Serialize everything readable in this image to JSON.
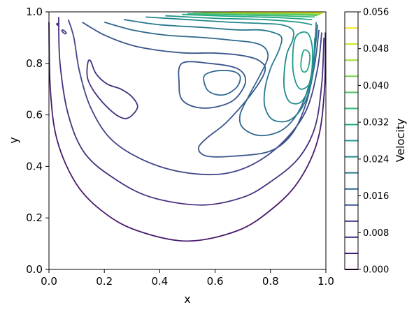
{
  "chart_data": {
    "type": "contour",
    "title": "",
    "xlabel": "x",
    "ylabel": "y",
    "xlim": [
      0.0,
      1.0
    ],
    "ylim": [
      0.0,
      1.0
    ],
    "xticks": [
      "0.0",
      "0.2",
      "0.4",
      "0.6",
      "0.8",
      "1.0"
    ],
    "yticks": [
      "0.0",
      "0.2",
      "0.4",
      "0.6",
      "0.8",
      "1.0"
    ],
    "grid": false,
    "colormap": "viridis",
    "colorbar": {
      "label": "Velocity",
      "range": [
        0.0,
        0.056
      ],
      "ticks": [
        "0.000",
        "0.008",
        "0.016",
        "0.024",
        "0.032",
        "0.040",
        "0.048",
        "0.056"
      ]
    },
    "levels": [
      {
        "value": 0.0,
        "color": "#440154"
      },
      {
        "value": 0.0035,
        "color": "#481a6c"
      },
      {
        "value": 0.007,
        "color": "#472f7d"
      },
      {
        "value": 0.0105,
        "color": "#414487"
      },
      {
        "value": 0.014,
        "color": "#39568c"
      },
      {
        "value": 0.0175,
        "color": "#31688e"
      },
      {
        "value": 0.021,
        "color": "#2a788e"
      },
      {
        "value": 0.0245,
        "color": "#23888e"
      },
      {
        "value": 0.028,
        "color": "#1f988b"
      },
      {
        "value": 0.0315,
        "color": "#22a884"
      },
      {
        "value": 0.035,
        "color": "#35b779"
      },
      {
        "value": 0.0385,
        "color": "#54c568"
      },
      {
        "value": 0.042,
        "color": "#7ad151"
      },
      {
        "value": 0.0455,
        "color": "#a5db36"
      },
      {
        "value": 0.049,
        "color": "#d2e21b"
      },
      {
        "value": 0.0525,
        "color": "#fde725"
      }
    ],
    "contours": [
      {
        "level": 0.0035,
        "points": [
          [
            0.0,
            0.96
          ],
          [
            0.005,
            0.7
          ],
          [
            0.03,
            0.5
          ],
          [
            0.1,
            0.33
          ],
          [
            0.2,
            0.22
          ],
          [
            0.32,
            0.15
          ],
          [
            0.5,
            0.11
          ],
          [
            0.68,
            0.15
          ],
          [
            0.8,
            0.23
          ],
          [
            0.9,
            0.34
          ],
          [
            0.97,
            0.5
          ],
          [
            0.995,
            0.7
          ],
          [
            0.998,
            0.92
          ]
        ]
      },
      {
        "level": 0.007,
        "points": [
          [
            0.035,
            0.98
          ],
          [
            0.04,
            0.8
          ],
          [
            0.07,
            0.6
          ],
          [
            0.13,
            0.45
          ],
          [
            0.24,
            0.35
          ],
          [
            0.37,
            0.28
          ],
          [
            0.55,
            0.25
          ],
          [
            0.7,
            0.28
          ],
          [
            0.8,
            0.34
          ],
          [
            0.9,
            0.43
          ],
          [
            0.96,
            0.55
          ],
          [
            0.985,
            0.72
          ],
          [
            0.993,
            0.9
          ]
        ]
      },
      {
        "level": 0.007,
        "closed": true,
        "points": [
          [
            0.15,
            0.81
          ],
          [
            0.17,
            0.76
          ],
          [
            0.21,
            0.72
          ],
          [
            0.26,
            0.7
          ],
          [
            0.3,
            0.67
          ],
          [
            0.32,
            0.63
          ],
          [
            0.29,
            0.59
          ],
          [
            0.26,
            0.59
          ],
          [
            0.22,
            0.62
          ],
          [
            0.17,
            0.68
          ],
          [
            0.14,
            0.74
          ],
          [
            0.14,
            0.8
          ]
        ]
      },
      {
        "level": 0.0105,
        "points": [
          [
            0.07,
            0.97
          ],
          [
            0.09,
            0.9
          ],
          [
            0.11,
            0.77
          ],
          [
            0.15,
            0.63
          ],
          [
            0.22,
            0.51
          ],
          [
            0.33,
            0.43
          ],
          [
            0.47,
            0.38
          ],
          [
            0.62,
            0.37
          ],
          [
            0.74,
            0.41
          ],
          [
            0.85,
            0.5
          ],
          [
            0.93,
            0.62
          ],
          [
            0.97,
            0.78
          ],
          [
            0.985,
            0.92
          ]
        ]
      },
      {
        "level": 0.014,
        "points": [
          [
            0.12,
            0.96
          ],
          [
            0.2,
            0.91
          ],
          [
            0.3,
            0.87
          ],
          [
            0.4,
            0.85
          ],
          [
            0.5,
            0.84
          ],
          [
            0.6,
            0.84
          ],
          [
            0.7,
            0.83
          ],
          [
            0.76,
            0.81
          ],
          [
            0.78,
            0.77
          ],
          [
            0.73,
            0.68
          ],
          [
            0.64,
            0.57
          ],
          [
            0.57,
            0.51
          ],
          [
            0.54,
            0.47
          ],
          [
            0.57,
            0.44
          ],
          [
            0.67,
            0.44
          ],
          [
            0.8,
            0.46
          ],
          [
            0.88,
            0.53
          ],
          [
            0.93,
            0.65
          ],
          [
            0.96,
            0.8
          ],
          [
            0.975,
            0.93
          ]
        ]
      },
      {
        "level": 0.014,
        "closed": true,
        "points": [
          [
            0.48,
            0.8
          ],
          [
            0.58,
            0.8
          ],
          [
            0.68,
            0.78
          ],
          [
            0.71,
            0.73
          ],
          [
            0.67,
            0.66
          ],
          [
            0.6,
            0.63
          ],
          [
            0.53,
            0.63
          ],
          [
            0.48,
            0.66
          ],
          [
            0.47,
            0.72
          ]
        ]
      },
      {
        "level": 0.0175,
        "points": [
          [
            0.2,
            0.96
          ],
          [
            0.3,
            0.93
          ],
          [
            0.42,
            0.91
          ],
          [
            0.56,
            0.9
          ],
          [
            0.66,
            0.89
          ],
          [
            0.74,
            0.88
          ],
          [
            0.78,
            0.86
          ],
          [
            0.79,
            0.82
          ],
          [
            0.76,
            0.75
          ],
          [
            0.72,
            0.67
          ],
          [
            0.69,
            0.6
          ],
          [
            0.7,
            0.55
          ],
          [
            0.76,
            0.52
          ],
          [
            0.84,
            0.54
          ],
          [
            0.9,
            0.61
          ],
          [
            0.94,
            0.72
          ],
          [
            0.96,
            0.85
          ],
          [
            0.97,
            0.95
          ]
        ]
      },
      {
        "level": 0.0175,
        "closed": true,
        "points": [
          [
            0.56,
            0.75
          ],
          [
            0.6,
            0.77
          ],
          [
            0.66,
            0.77
          ],
          [
            0.69,
            0.75
          ],
          [
            0.68,
            0.71
          ],
          [
            0.64,
            0.68
          ],
          [
            0.6,
            0.68
          ],
          [
            0.57,
            0.7
          ]
        ]
      },
      {
        "level": 0.021,
        "points": [
          [
            0.27,
            0.97
          ],
          [
            0.4,
            0.95
          ],
          [
            0.55,
            0.94
          ],
          [
            0.68,
            0.93
          ],
          [
            0.76,
            0.93
          ],
          [
            0.81,
            0.92
          ],
          [
            0.84,
            0.9
          ],
          [
            0.83,
            0.85
          ],
          [
            0.8,
            0.78
          ],
          [
            0.78,
            0.7
          ],
          [
            0.78,
            0.63
          ],
          [
            0.81,
            0.58
          ],
          [
            0.87,
            0.58
          ],
          [
            0.92,
            0.64
          ],
          [
            0.95,
            0.74
          ],
          [
            0.96,
            0.86
          ],
          [
            0.965,
            0.96
          ]
        ]
      },
      {
        "level": 0.0245,
        "points": [
          [
            0.35,
            0.98
          ],
          [
            0.5,
            0.97
          ],
          [
            0.65,
            0.96
          ],
          [
            0.77,
            0.955
          ],
          [
            0.84,
            0.95
          ],
          [
            0.88,
            0.93
          ],
          [
            0.88,
            0.89
          ],
          [
            0.86,
            0.84
          ],
          [
            0.85,
            0.77
          ],
          [
            0.85,
            0.7
          ],
          [
            0.87,
            0.65
          ],
          [
            0.91,
            0.65
          ],
          [
            0.94,
            0.71
          ],
          [
            0.955,
            0.8
          ],
          [
            0.96,
            0.9
          ]
        ]
      },
      {
        "level": 0.028,
        "closed": true,
        "points": [
          [
            0.89,
            0.9
          ],
          [
            0.93,
            0.92
          ],
          [
            0.95,
            0.87
          ],
          [
            0.95,
            0.78
          ],
          [
            0.94,
            0.72
          ],
          [
            0.91,
            0.7
          ],
          [
            0.89,
            0.73
          ],
          [
            0.88,
            0.8
          ]
        ]
      },
      {
        "level": 0.0315,
        "closed": true,
        "points": [
          [
            0.92,
            0.85
          ],
          [
            0.94,
            0.84
          ],
          [
            0.94,
            0.8
          ],
          [
            0.93,
            0.77
          ],
          [
            0.915,
            0.77
          ],
          [
            0.91,
            0.8
          ]
        ]
      },
      {
        "level": 0.028,
        "points": [
          [
            0.42,
            0.985
          ],
          [
            0.6,
            0.975
          ],
          [
            0.78,
            0.97
          ],
          [
            0.9,
            0.96
          ],
          [
            0.95,
            0.95
          ]
        ]
      },
      {
        "level": 0.0315,
        "points": [
          [
            0.48,
            0.99
          ],
          [
            0.65,
            0.983
          ],
          [
            0.82,
            0.978
          ],
          [
            0.95,
            0.97
          ]
        ]
      },
      {
        "level": 0.035,
        "points": [
          [
            0.5,
            0.993
          ],
          [
            0.68,
            0.988
          ],
          [
            0.85,
            0.984
          ],
          [
            0.96,
            0.98
          ]
        ]
      },
      {
        "level": 0.0385,
        "points": [
          [
            0.52,
            0.995
          ],
          [
            0.72,
            0.992
          ],
          [
            0.88,
            0.989
          ],
          [
            0.97,
            0.986
          ]
        ]
      },
      {
        "level": 0.042,
        "points": [
          [
            0.55,
            0.997
          ],
          [
            0.75,
            0.995
          ],
          [
            0.9,
            0.993
          ],
          [
            0.98,
            0.99
          ]
        ]
      },
      {
        "level": 0.0455,
        "points": [
          [
            0.58,
            0.998
          ],
          [
            0.78,
            0.997
          ],
          [
            0.93,
            0.996
          ],
          [
            0.985,
            0.994
          ]
        ]
      },
      {
        "level": 0.049,
        "points": [
          [
            0.62,
            0.999
          ],
          [
            0.8,
            0.998
          ],
          [
            0.95,
            0.997
          ],
          [
            0.99,
            0.996
          ]
        ]
      },
      {
        "level": 0.0525,
        "points": [
          [
            0.66,
            0.9995
          ],
          [
            0.85,
            0.9993
          ],
          [
            0.99,
            0.999
          ]
        ]
      },
      {
        "level": 0.0105,
        "closed": true,
        "points": [
          [
            0.05,
            0.93
          ],
          [
            0.062,
            0.92
          ],
          [
            0.058,
            0.915
          ],
          [
            0.047,
            0.925
          ]
        ]
      },
      {
        "level": 0.007,
        "closed": true,
        "points": [
          [
            0.03,
            0.955
          ],
          [
            0.035,
            0.952
          ],
          [
            0.033,
            0.948
          ],
          [
            0.028,
            0.952
          ]
        ]
      }
    ]
  }
}
